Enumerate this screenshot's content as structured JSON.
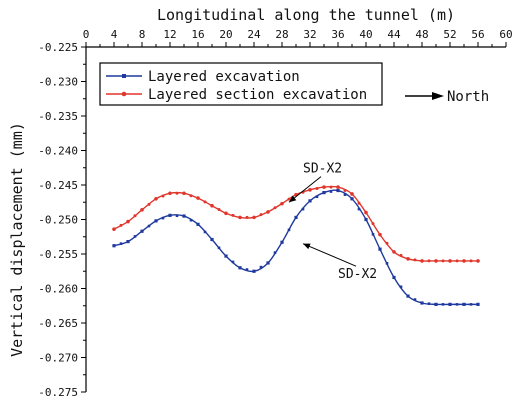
{
  "chart_data": {
    "type": "line",
    "xlabel": "Longitudinal along the tunnel (m)",
    "ylabel": "Vertical displacement (mm)",
    "xlim": [
      0,
      60
    ],
    "ylim": [
      -0.275,
      -0.225
    ],
    "x_ticks": [
      "0",
      "4",
      "8",
      "12",
      "16",
      "20",
      "24",
      "28",
      "32",
      "36",
      "40",
      "44",
      "48",
      "52",
      "56",
      "60"
    ],
    "y_ticks": [
      "-0.225",
      "-0.230",
      "-0.235",
      "-0.240",
      "-0.245",
      "-0.250",
      "-0.255",
      "-0.260",
      "-0.265",
      "-0.270",
      "-0.275"
    ],
    "x_axis_position": "top",
    "grid": false,
    "legend_position": "top-left",
    "direction_label": "North",
    "series": [
      {
        "name": "Layered excavation",
        "color": "#1f3a9e",
        "marker": "square",
        "x": [
          4,
          6,
          8,
          10,
          12,
          14,
          16,
          18,
          20,
          22,
          24,
          26,
          28,
          30,
          32,
          34,
          36,
          38,
          40,
          42,
          44,
          46,
          48,
          50,
          52,
          54,
          56
        ],
        "y": [
          -0.2538,
          -0.2532,
          -0.2517,
          -0.2502,
          -0.2494,
          -0.2495,
          -0.2507,
          -0.2529,
          -0.2553,
          -0.257,
          -0.2575,
          -0.2563,
          -0.2533,
          -0.2497,
          -0.2473,
          -0.2461,
          -0.2458,
          -0.247,
          -0.25,
          -0.2543,
          -0.2584,
          -0.2611,
          -0.2621,
          -0.2623,
          -0.2623,
          -0.2623,
          -0.2623
        ]
      },
      {
        "name": "Layered section excavation",
        "color": "#e0362b",
        "marker": "circle",
        "x": [
          4,
          6,
          8,
          10,
          12,
          14,
          16,
          18,
          20,
          22,
          24,
          26,
          28,
          30,
          32,
          34,
          36,
          38,
          40,
          42,
          44,
          46,
          48,
          50,
          52,
          54,
          56
        ],
        "y": [
          -0.2514,
          -0.2503,
          -0.2486,
          -0.247,
          -0.2462,
          -0.2462,
          -0.2469,
          -0.248,
          -0.2491,
          -0.2497,
          -0.2497,
          -0.2489,
          -0.2477,
          -0.2464,
          -0.2457,
          -0.2453,
          -0.2453,
          -0.2463,
          -0.249,
          -0.2522,
          -0.2547,
          -0.2557,
          -0.256,
          -0.256,
          -0.256,
          -0.256,
          -0.256
        ]
      }
    ],
    "annotations": [
      {
        "text": "SD-X2",
        "target_series": 1,
        "target_x": 29,
        "target_y": -0.2475,
        "text_x": 31,
        "text_y": -0.2432
      },
      {
        "text": "SD-X2",
        "target_series": 0,
        "target_x": 31,
        "target_y": -0.2535,
        "text_x": 36,
        "text_y": -0.2585
      }
    ]
  }
}
